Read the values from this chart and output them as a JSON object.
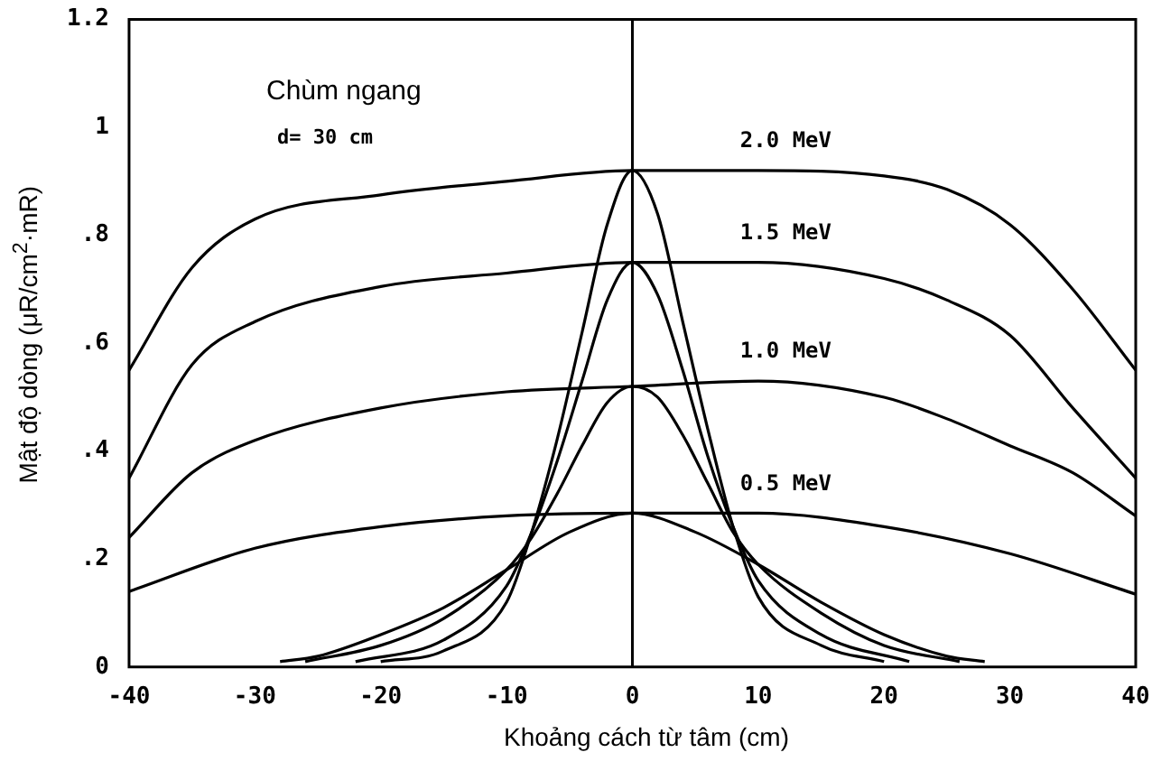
{
  "chart_data": {
    "type": "line",
    "xlabel": "Khoảng cách từ tâm (cm)",
    "ylabel": "Mật độ dòng (μR/cm$^{2}$·mR)",
    "xlim": [
      -40,
      40
    ],
    "xticks": [
      -40,
      -30,
      -20,
      -10,
      0,
      10,
      20,
      30,
      40
    ],
    "ylim": [
      0,
      1.2
    ],
    "yticks": [
      0,
      {
        "value": 0.2,
        "label": ".2"
      },
      {
        "value": 0.4,
        "label": ".4"
      },
      {
        "value": 0.6,
        "label": ".6"
      },
      {
        "value": 0.8,
        "label": ".8"
      },
      1,
      1.2
    ],
    "grid": false,
    "legend": false,
    "marker": "none",
    "line_style": "solid",
    "ref_lines": [
      {
        "axis": "x",
        "value": 0,
        "color": "#000000"
      }
    ],
    "annotations": [
      "Chùm ngang",
      "d= 30 cm"
    ],
    "series": [
      {
        "name": "2.0 MeV",
        "color": "#000000",
        "x": [
          -40,
          -35,
          -30,
          -20,
          -10,
          0,
          10,
          20,
          25,
          30,
          35,
          40
        ],
        "values": [
          0.55,
          0.74,
          0.83,
          0.875,
          0.9,
          0.92,
          0.92,
          0.91,
          0.885,
          0.82,
          0.7,
          0.55
        ]
      },
      {
        "name": "1.5 MeV",
        "color": "#000000",
        "x": [
          -40,
          -35,
          -30,
          -20,
          -10,
          0,
          10,
          20,
          25,
          30,
          35,
          40
        ],
        "values": [
          0.35,
          0.56,
          0.64,
          0.705,
          0.73,
          0.75,
          0.75,
          0.72,
          0.68,
          0.615,
          0.48,
          0.35
        ]
      },
      {
        "name": "1.0 MeV",
        "color": "#000000",
        "x": [
          -40,
          -35,
          -30,
          -20,
          -10,
          0,
          10,
          20,
          25,
          30,
          35,
          40
        ],
        "values": [
          0.24,
          0.36,
          0.42,
          0.48,
          0.51,
          0.52,
          0.53,
          0.5,
          0.46,
          0.41,
          0.36,
          0.28
        ]
      },
      {
        "name": "0.5 MeV",
        "color": "#000000",
        "x": [
          -40,
          -30,
          -20,
          -10,
          0,
          10,
          20,
          30,
          40
        ],
        "values": [
          0.14,
          0.22,
          0.26,
          0.28,
          0.285,
          0.285,
          0.26,
          0.21,
          0.135
        ]
      },
      {
        "color": "#000000",
        "x": [
          -20,
          -15,
          -10,
          -8,
          -6,
          -4,
          -2,
          0,
          2,
          4,
          6,
          8,
          10,
          15,
          20
        ],
        "values": [
          0.01,
          0.03,
          0.12,
          0.25,
          0.42,
          0.62,
          0.82,
          0.92,
          0.84,
          0.64,
          0.44,
          0.26,
          0.13,
          0.04,
          0.01
        ]
      },
      {
        "color": "#000000",
        "x": [
          -22,
          -15,
          -10,
          -8,
          -6,
          -4,
          -2,
          0,
          2,
          4,
          6,
          8,
          10,
          15,
          22
        ],
        "values": [
          0.01,
          0.05,
          0.15,
          0.25,
          0.38,
          0.53,
          0.68,
          0.75,
          0.69,
          0.55,
          0.39,
          0.26,
          0.16,
          0.06,
          0.01
        ]
      },
      {
        "color": "#000000",
        "x": [
          -26,
          -20,
          -15,
          -10,
          -8,
          -6,
          -4,
          -2,
          0,
          2,
          4,
          6,
          8,
          10,
          15,
          20,
          26
        ],
        "values": [
          0.01,
          0.04,
          0.09,
          0.18,
          0.24,
          0.32,
          0.41,
          0.49,
          0.52,
          0.5,
          0.43,
          0.34,
          0.25,
          0.19,
          0.1,
          0.04,
          0.01
        ]
      },
      {
        "color": "#000000",
        "x": [
          -28,
          -25,
          -20,
          -15,
          -10,
          -5,
          0,
          5,
          10,
          15,
          20,
          25,
          28
        ],
        "values": [
          0.01,
          0.02,
          0.06,
          0.11,
          0.18,
          0.25,
          0.285,
          0.25,
          0.19,
          0.12,
          0.06,
          0.02,
          0.01
        ]
      }
    ]
  }
}
